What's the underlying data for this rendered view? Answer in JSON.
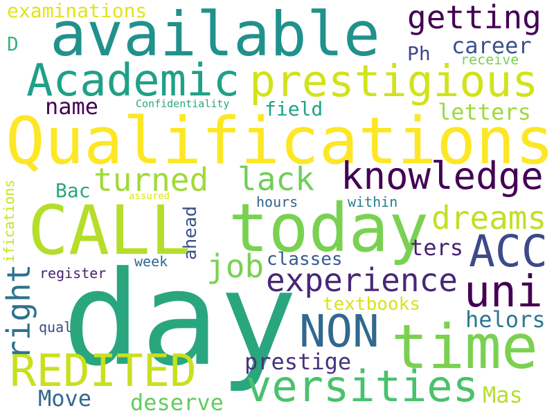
{
  "palette": {
    "background": "#ffffff",
    "yellow": "#fde725",
    "lime": "#b5de2b",
    "green": "#6ece58",
    "teal_green": "#35b779",
    "teal": "#1f9e89",
    "blue_teal": "#26828e",
    "steel_blue": "#31688e",
    "indigo": "#3e4989",
    "purple": "#482878",
    "dark_purple": "#440154"
  },
  "words": [
    {
      "text": "Qualifications",
      "color": "#fde725"
    },
    {
      "text": "day",
      "color": "#2aa67f"
    },
    {
      "text": "available",
      "color": "#21918c"
    },
    {
      "text": "CALL",
      "color": "#b5de2b"
    },
    {
      "text": "today",
      "color": "#7ad151"
    },
    {
      "text": "time",
      "color": "#7ad151"
    },
    {
      "text": "prestigious",
      "color": "#d2e21b"
    },
    {
      "text": "Academic",
      "color": "#1fa187"
    },
    {
      "text": "knowledge",
      "color": "#440154"
    },
    {
      "text": "ACC",
      "color": "#3e4989"
    },
    {
      "text": "REDITED",
      "color": "#c8e020"
    },
    {
      "text": "uni",
      "color": "#440154"
    },
    {
      "text": "versities",
      "color": "#4ac16d"
    },
    {
      "text": "NON",
      "color": "#31688e"
    },
    {
      "text": "getting",
      "color": "#440154"
    },
    {
      "text": "experience",
      "color": "#482878"
    },
    {
      "text": "turned",
      "color": "#a0da39"
    },
    {
      "text": "lack",
      "color": "#6ece58"
    },
    {
      "text": "dreams",
      "color": "#c2df23"
    },
    {
      "text": "job",
      "color": "#7ad151"
    },
    {
      "text": "right",
      "color": "#2c728e"
    },
    {
      "text": "letters",
      "color": "#9dd93b"
    },
    {
      "text": "career",
      "color": "#3b528b"
    },
    {
      "text": "name",
      "color": "#440154"
    },
    {
      "text": "prestige",
      "color": "#46327e"
    },
    {
      "text": "deserve",
      "color": "#63cb5f"
    },
    {
      "text": "Move",
      "color": "#31688e"
    },
    {
      "text": "ters",
      "color": "#481f70"
    },
    {
      "text": "helors",
      "color": "#2a788e"
    },
    {
      "text": "classes",
      "color": "#38598c"
    },
    {
      "text": "textbooks",
      "color": "#d8e219"
    },
    {
      "text": "Mas",
      "color": "#b5de2b"
    },
    {
      "text": "Bac",
      "color": "#2aa67f"
    },
    {
      "text": "Ph",
      "color": "#414487"
    },
    {
      "text": "field",
      "color": "#1fa187"
    },
    {
      "text": "examinations",
      "color": "#e2e418"
    },
    {
      "text": "ahead",
      "color": "#3b528b"
    },
    {
      "text": "ifications",
      "color": "#cae11f"
    },
    {
      "text": "D",
      "color": "#35b779"
    },
    {
      "text": "receive",
      "color": "#7ad151"
    },
    {
      "text": "Confidentiality",
      "color": "#2aa67f"
    },
    {
      "text": "hours",
      "color": "#33638d"
    },
    {
      "text": "within",
      "color": "#287d8e"
    },
    {
      "text": "week",
      "color": "#31688e"
    },
    {
      "text": "register",
      "color": "#482173"
    },
    {
      "text": "qual",
      "color": "#3e4989"
    },
    {
      "text": "assured",
      "color": "#e2e418"
    }
  ]
}
